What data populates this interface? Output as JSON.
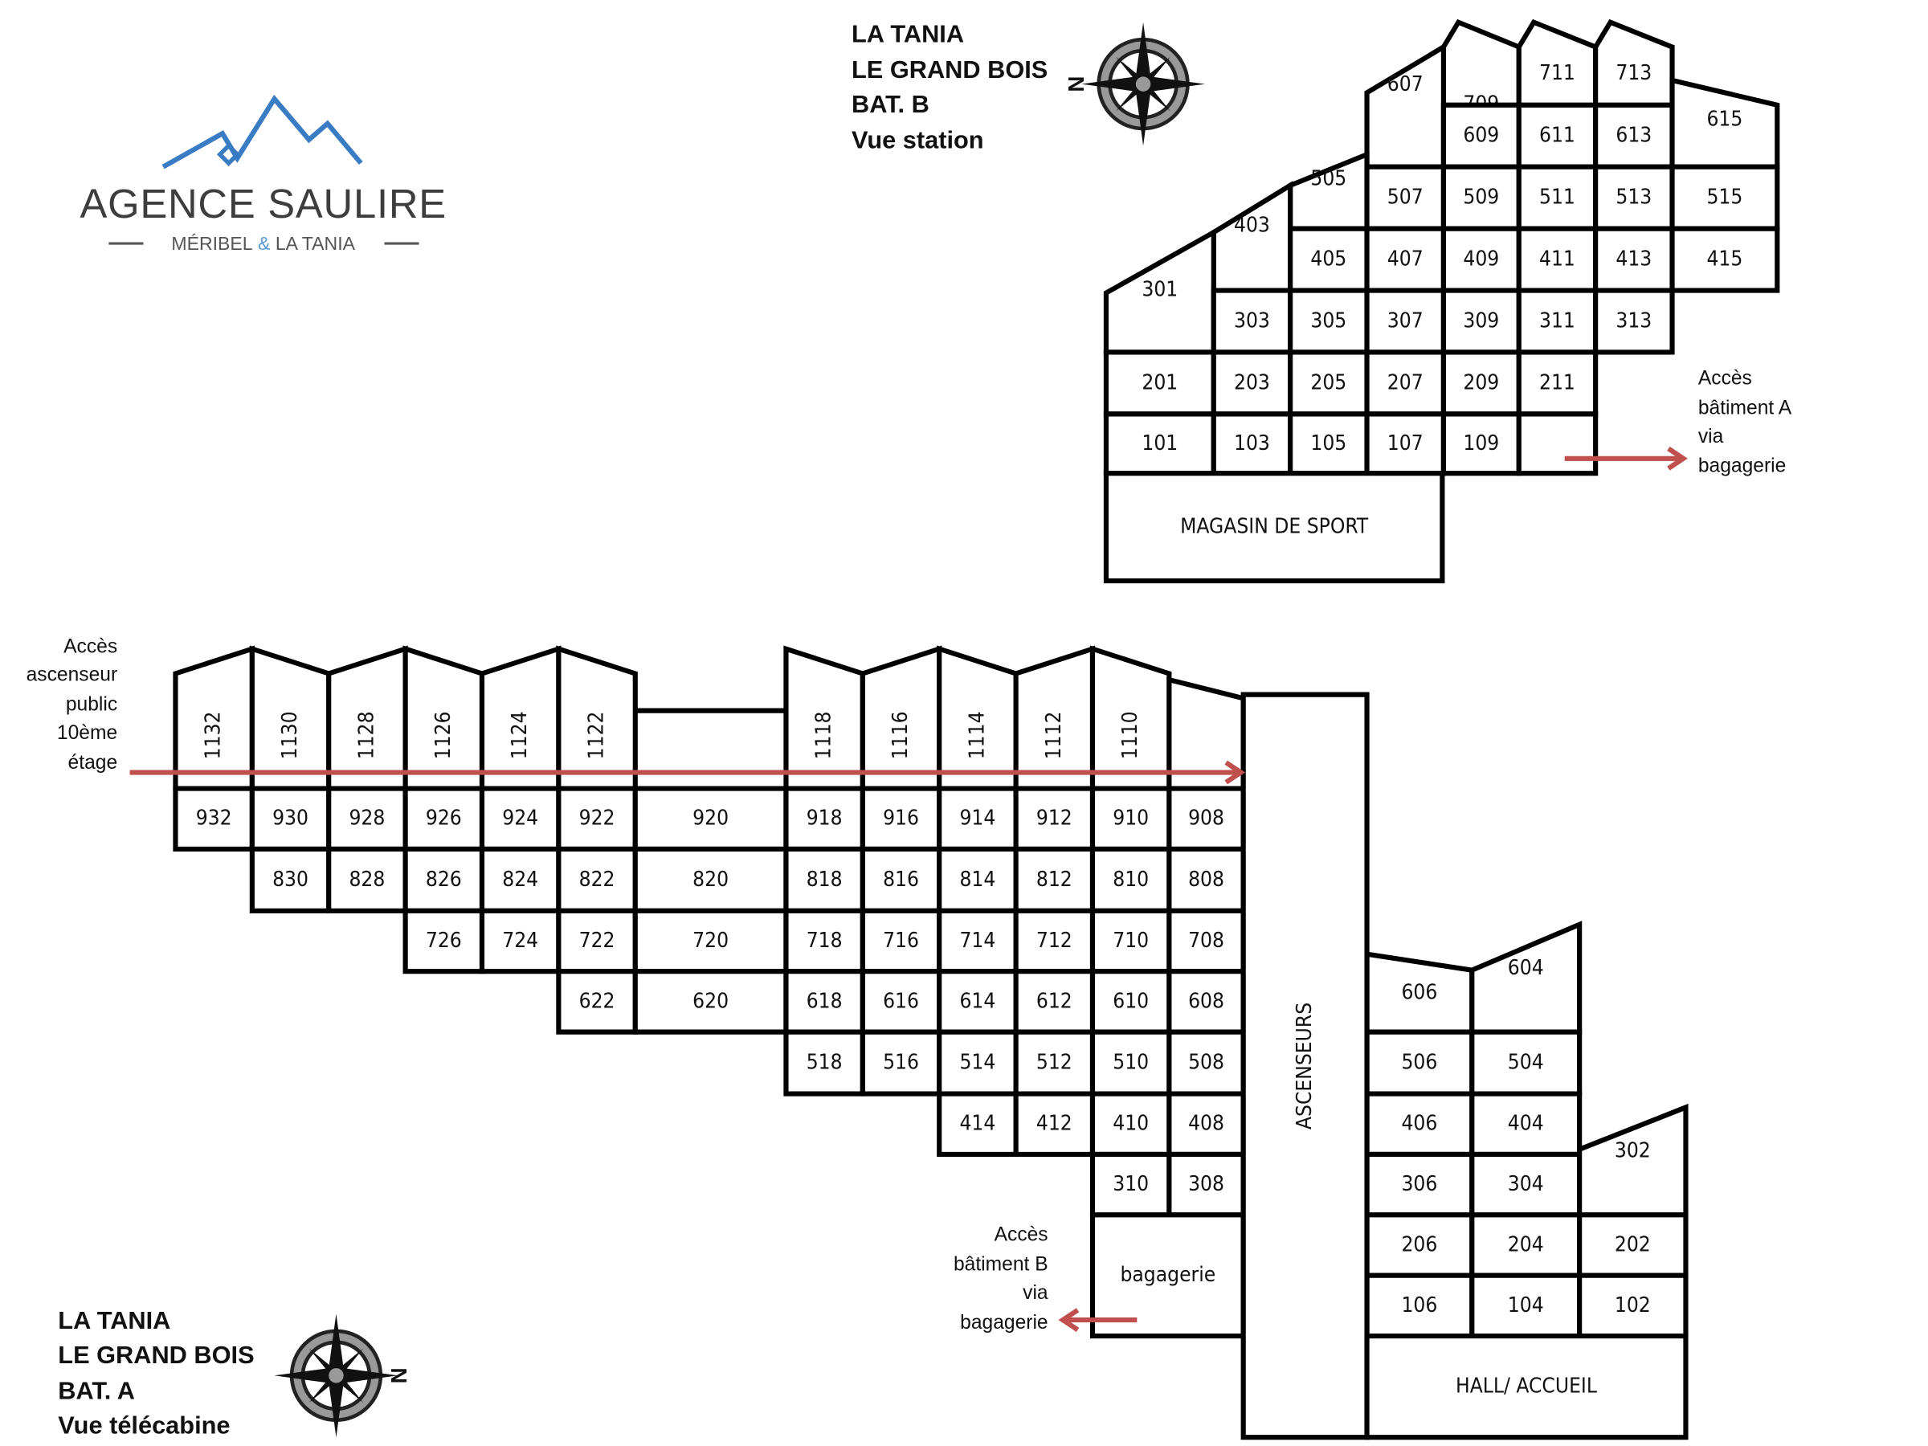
{
  "logo": {
    "name": "AGENCE SAULIRE",
    "tagline_left": "MÉRIBEL",
    "tagline_amp": "&",
    "tagline_right": "LA TANIA",
    "color_mountain": "#3a7cc4",
    "color_text": "#3d3d3d"
  },
  "building_b": {
    "title": [
      "LA TANIA",
      "LE GRAND BOIS",
      "BAT. B",
      "Vue station"
    ],
    "compass_letter": "N",
    "units": [
      "709",
      "711",
      "713",
      "607",
      "609",
      "611",
      "613",
      "615",
      "505",
      "507",
      "509",
      "511",
      "513",
      "515",
      "403",
      "405",
      "407",
      "409",
      "411",
      "413",
      "415",
      "301",
      "303",
      "305",
      "307",
      "309",
      "311",
      "313",
      "201",
      "203",
      "205",
      "207",
      "209",
      "211",
      "101",
      "103",
      "105",
      "107",
      "109"
    ],
    "shop": "MAGASIN DE SPORT",
    "access_note": [
      "Accès",
      "bâtiment A",
      "via",
      "bagagerie"
    ]
  },
  "building_a": {
    "title": [
      "LA TANIA",
      "LE GRAND BOIS",
      "BAT. A",
      "Vue télécabine"
    ],
    "compass_letter": "N",
    "top_units": [
      "1132",
      "1130",
      "1128",
      "1126",
      "1124",
      "1122",
      "1118",
      "1116",
      "1114",
      "1112",
      "1110"
    ],
    "units": [
      "932",
      "930",
      "928",
      "926",
      "924",
      "922",
      "920",
      "918",
      "916",
      "914",
      "912",
      "910",
      "908",
      "830",
      "828",
      "826",
      "824",
      "822",
      "820",
      "818",
      "816",
      "814",
      "812",
      "810",
      "808",
      "726",
      "724",
      "722",
      "720",
      "718",
      "716",
      "714",
      "712",
      "710",
      "708",
      "622",
      "620",
      "618",
      "616",
      "614",
      "612",
      "610",
      "608",
      "518",
      "516",
      "514",
      "512",
      "510",
      "508",
      "414",
      "412",
      "410",
      "408",
      "310",
      "308",
      "606",
      "604",
      "506",
      "504",
      "406",
      "404",
      "306",
      "304",
      "302",
      "206",
      "204",
      "202",
      "106",
      "104",
      "102"
    ],
    "lifts": "ASCENSEURS",
    "luggage": "bagagerie",
    "hall": "HALL/ ACCUEIL",
    "public_lift_note": [
      "Accès",
      "ascenseur",
      "public",
      "10ème",
      "étage"
    ],
    "access_note": [
      "Accès",
      "bâtiment B",
      "via",
      "bagagerie"
    ]
  },
  "colors": {
    "arrow": "#c0504d",
    "line": "#000000"
  }
}
